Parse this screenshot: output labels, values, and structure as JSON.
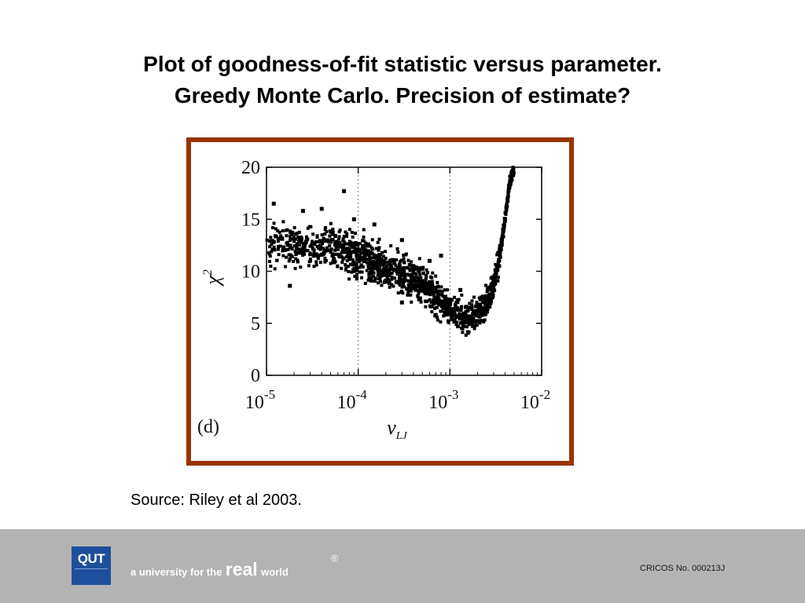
{
  "slide": {
    "title_lines": [
      "Plot of goodness-of-fit statistic versus parameter.",
      "Greedy Monte Carlo. Precision of estimate?"
    ],
    "source": "Source: Riley et al 2003."
  },
  "footer": {
    "logo_text": "QUT",
    "tagline_prefix": "a university for the",
    "tagline_real": "real",
    "tagline_suffix": "world",
    "registered_mark": "®",
    "cricos": "CRICOS No. 000213J"
  },
  "colors": {
    "frame_border": "#993300",
    "footer_bg": "#b3b3b3",
    "logo_bg": "#1e4f9c"
  },
  "chart_data": {
    "type": "scatter",
    "panel_label": "(d)",
    "x_scale": "log",
    "xlim": [
      1e-05,
      0.01
    ],
    "ylim": [
      0,
      20
    ],
    "x_tick_labels": [
      {
        "base": "10",
        "exp": "-5",
        "value": 1e-05
      },
      {
        "base": "10",
        "exp": "-4",
        "value": 0.0001
      },
      {
        "base": "10",
        "exp": "-3",
        "value": 0.001
      },
      {
        "base": "10",
        "exp": "-2",
        "value": 0.01
      }
    ],
    "y_ticks": [
      0,
      5,
      10,
      15,
      20
    ],
    "xlabel": "ν",
    "xlabel_sub": "LJ",
    "ylabel": "χ",
    "ylabel_sup": "2",
    "trend": {
      "x": [
        1e-05,
        2e-05,
        5e-05,
        0.0001,
        0.0002,
        0.0005,
        0.001,
        0.0015,
        0.002,
        0.0025,
        0.003,
        0.0035,
        0.004,
        0.0045,
        0.005
      ],
      "y": [
        12.5,
        12.4,
        12.2,
        11.5,
        10.3,
        8.8,
        6.3,
        5.6,
        6.0,
        7.0,
        8.8,
        11.5,
        15.2,
        18.5,
        19.8
      ]
    },
    "outliers": [
      {
        "x": 1.2e-05,
        "y": 16.5
      },
      {
        "x": 1.8e-05,
        "y": 8.6
      },
      {
        "x": 2.5e-05,
        "y": 15.8
      },
      {
        "x": 4e-05,
        "y": 16.0
      },
      {
        "x": 7e-05,
        "y": 17.7
      },
      {
        "x": 9e-05,
        "y": 15.0
      },
      {
        "x": 0.00015,
        "y": 14.5
      },
      {
        "x": 0.0002,
        "y": 9.1
      },
      {
        "x": 0.0003,
        "y": 13.0
      },
      {
        "x": 0.0004,
        "y": 10.5
      },
      {
        "x": 0.0006,
        "y": 11.0
      },
      {
        "x": 0.0008,
        "y": 11.5
      },
      {
        "x": 0.0013,
        "y": 8.2
      },
      {
        "x": 0.0007,
        "y": 5.8
      },
      {
        "x": 0.0003,
        "y": 7.0
      }
    ]
  }
}
